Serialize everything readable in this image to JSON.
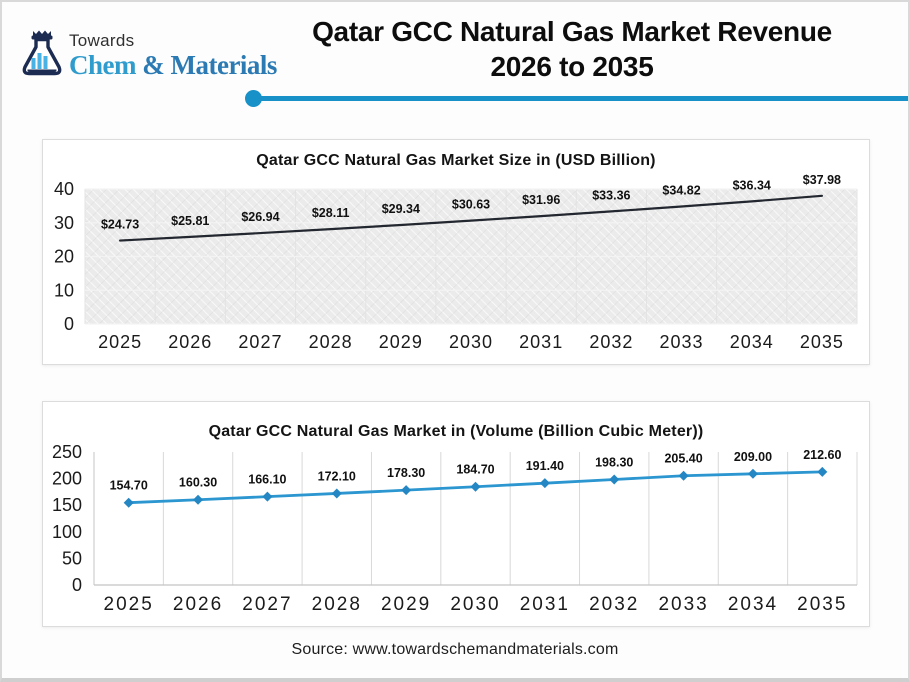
{
  "header": {
    "logo": {
      "towards": "Towards",
      "brand_chem": "Chem",
      "brand_rest": "& Materials",
      "flask_icon": "chemistry-flask-with-bar-chart"
    },
    "title_line1": "Qatar GCC Natural Gas Market Revenue",
    "title_line2": "2026 to 2035"
  },
  "colors": {
    "accent_blue": "#1791c8",
    "volume_line": "#2b96d0",
    "volume_marker": "#2487c4",
    "size_line": "#23272f",
    "label_text": "#111111"
  },
  "chart_data": [
    {
      "type": "line",
      "title": "Qatar GCC Natural Gas Market Size in (USD Billion)",
      "categories": [
        "2025",
        "2026",
        "2027",
        "2028",
        "2029",
        "2030",
        "2031",
        "2032",
        "2033",
        "2034",
        "2035"
      ],
      "values": [
        24.73,
        25.81,
        26.94,
        28.11,
        29.34,
        30.63,
        31.96,
        33.36,
        34.82,
        36.34,
        37.98
      ],
      "data_labels": [
        "$24.73",
        "$25.81",
        "$26.94",
        "$28.11",
        "$29.34",
        "$30.63",
        "$31.96",
        "$33.36",
        "$34.82",
        "$36.34",
        "$37.98"
      ],
      "xlabel": "",
      "ylabel": "",
      "ylim": [
        0,
        40
      ],
      "ytick": 10,
      "grid": "faint horizontal and vertical on hatched plot background",
      "legend": false,
      "plot_bg": "hatch",
      "line_color": "#23272f",
      "markers": "none"
    },
    {
      "type": "line",
      "title": "Qatar GCC Natural Gas Market in (Volume (Billion Cubic Meter))",
      "categories": [
        "2025",
        "2026",
        "2027",
        "2028",
        "2029",
        "2030",
        "2031",
        "2032",
        "2033",
        "2034",
        "2035"
      ],
      "values": [
        154.7,
        160.3,
        166.1,
        172.1,
        178.3,
        184.7,
        191.4,
        198.3,
        205.4,
        209.0,
        212.6
      ],
      "data_labels": [
        "154.70",
        "160.30",
        "166.10",
        "172.10",
        "178.30",
        "184.70",
        "191.40",
        "198.30",
        "205.40",
        "209.00",
        "212.60"
      ],
      "xlabel": "",
      "ylabel": "",
      "ylim": [
        0,
        250
      ],
      "ytick": 50,
      "grid": "vertical column gridlines on white plot background",
      "legend": false,
      "plot_bg": "white",
      "line_color": "#2b96d0",
      "markers": "diamond",
      "marker_color": "#2487c4"
    }
  ],
  "footer": {
    "source": "Source: www.towardschemandmaterials.com"
  }
}
